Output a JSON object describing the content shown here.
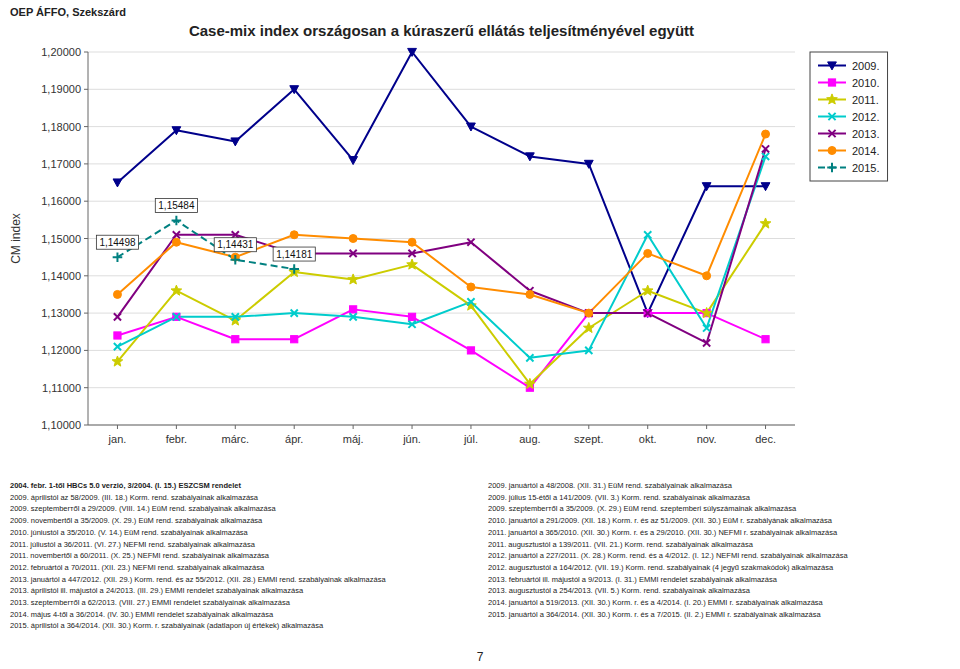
{
  "chart_data": {
    "type": "line",
    "title": "Case-mix index országosan a kúraszerű ellátás teljesítményével együtt",
    "header": "OEP ÁFFO, Szekszárd",
    "y_label": "CM index",
    "categories": [
      "jan.",
      "febr.",
      "márc.",
      "ápr.",
      "máj.",
      "jún.",
      "júl.",
      "aug.",
      "szept.",
      "okt.",
      "nov.",
      "dec."
    ],
    "ylim": [
      1.1,
      1.2
    ],
    "yticks": [
      {
        "value": 1.1,
        "label": "1,10000"
      },
      {
        "value": 1.11,
        "label": "1,11000"
      },
      {
        "value": 1.12,
        "label": "1,12000"
      },
      {
        "value": 1.13,
        "label": "1,13000"
      },
      {
        "value": 1.14,
        "label": "1,14000"
      },
      {
        "value": 1.15,
        "label": "1,15000"
      },
      {
        "value": 1.16,
        "label": "1,16000"
      },
      {
        "value": 1.17,
        "label": "1,17000"
      },
      {
        "value": 1.18,
        "label": "1,18000"
      },
      {
        "value": 1.19,
        "label": "1,19000"
      },
      {
        "value": 1.2,
        "label": "1,20000"
      }
    ],
    "grid": true,
    "legend": "upper right",
    "series": [
      {
        "name": "2009.",
        "color": "#00008B",
        "line_style": "solid",
        "marker": "triangle-down",
        "values": [
          1.165,
          1.179,
          1.176,
          1.19,
          1.171,
          1.2,
          1.18,
          1.172,
          1.17,
          1.13,
          1.164,
          1.164
        ]
      },
      {
        "name": "2010.",
        "color": "#FF00FF",
        "line_style": "solid",
        "marker": "square",
        "values": [
          1.124,
          1.129,
          1.123,
          1.123,
          1.131,
          1.129,
          1.12,
          1.11,
          1.13,
          1.13,
          1.13,
          1.123
        ]
      },
      {
        "name": "2011.",
        "color": "#CCCC00",
        "line_style": "solid",
        "marker": "star",
        "values": [
          1.117,
          1.136,
          1.128,
          1.141,
          1.139,
          1.143,
          1.132,
          1.111,
          1.126,
          1.136,
          1.13,
          1.154
        ]
      },
      {
        "name": "2012.",
        "color": "#00CCCC",
        "line_style": "solid",
        "marker": "x",
        "values": [
          1.121,
          1.129,
          1.129,
          1.13,
          1.129,
          1.127,
          1.133,
          1.118,
          1.12,
          1.151,
          1.126,
          1.172
        ]
      },
      {
        "name": "2013.",
        "color": "#800080",
        "line_style": "solid",
        "marker": "x",
        "values": [
          1.129,
          1.151,
          1.151,
          1.146,
          1.146,
          1.146,
          1.149,
          1.136,
          1.13,
          1.13,
          1.122,
          1.174
        ]
      },
      {
        "name": "2014.",
        "color": "#FF8C00",
        "line_style": "solid",
        "marker": "circle",
        "values": [
          1.135,
          1.149,
          1.145,
          1.151,
          1.15,
          1.149,
          1.137,
          1.135,
          1.13,
          1.146,
          1.14,
          1.178
        ]
      },
      {
        "name": "2015.",
        "color": "#008080",
        "line_style": "dashed",
        "marker": "plus",
        "values": [
          1.14498,
          1.15484,
          1.14431,
          1.14181,
          null,
          null,
          null,
          null,
          null,
          null,
          null,
          null
        ]
      }
    ],
    "annotations": [
      {
        "text": "1,15484",
        "x": "febr.",
        "y": 1.15484
      },
      {
        "text": "1,14498",
        "x": "jan.",
        "y": 1.14498
      },
      {
        "text": "1,14431",
        "x": "márc.",
        "y": 1.14431
      },
      {
        "text": "1,14181",
        "x": "ápr.",
        "y": 1.14181
      }
    ],
    "footnotes_left": [
      "2004. febr. 1-től HBCs 5.0 verzió, 3/2004. (I. 15.) ESZCSM rendelet",
      "2009. áprilistól az 58/2009. (III. 18.) Korm. rend. szabályainak alkalmazása",
      "2009. szeptemberтől a 29/2009. (VIII. 14.) EüM rend. szabályainak alkalmazása",
      "2009. novembertől a 35/2009. (X. 29.) EüM rend. szabályainak alkalmazása",
      "2010. júniustól a 35/2010. (V. 14.) EüM rend. szabályainak alkalmazása",
      "2011. júliustól a 36/2011. (VI. 27.) NEFMI rend. szabályainak alkalmazása",
      "2011. novembertől a 60/2011. (X. 25.) NEFMI rend. szabályainak alkalmazása",
      "2012. februártól a 70/2011. (XII. 23.) NEFMI rend. szabályainak alkalmazása",
      "2013. januártól a 447/2012. (XII. 29.) Korm. rend. és az 55/2012. (XII. 28.) EMMI rend. szabályainak alkalmazása",
      "2013. áprilistól ill. májustól a 24/2013. (III. 29.) EMMI rendelet szabályainak alkalmazása",
      "2013. szeptemberтől a 62/2013. (VIII. 27.) EMMI rendelet szabályainak alkalmazása",
      "2014. május 4-től a 36/2014. (IV. 30.) EMMI rendelet szabályainak alkalmazása",
      "2015. áprilistól a 364/2014. (XII. 30.) Korm. r. szabályainak (adatlapon új értékek) alkalmazása"
    ],
    "footnotes_right": [
      "2009. januártól a 48/2008. (XII. 31.) EüM rend. szabályainak alkalmazása",
      "2009. július 15-étől a 141/2009. (VII. 3.) Korm. rend. szabályainak alkalmazása",
      "2009. szeptemberтől a 35/2009. (X. 29.) EüM rend. szeptemberi súlyszámainak alkalmazása",
      "2010. januártól a 291/2009. (XII. 18.) Korm. r. és az 51/2009. (XII. 30.) EüM r. szabályának alkalmazása",
      "2011. januártól a 365/2010. (XII. 30.) Korm. r. és a 29/2010. (XII. 30.) NEFMI r. szabályainak alkalmazása",
      "2011. augusztustól a 139/2011. (VII. 21.) Korm. rend. szabályainak alkalmazása",
      "2012. januártól a 227/2011. (X. 28.) Korm. rend. és a 4/2012. (I. 12.) NEFMI rend. szabályainak alkalmazása",
      "2012. augusztustól a 164/2012. (VII. 19.) Korm. rend. szabályainak (4 jegyű szakmakódok) alkalmazása",
      "2013. februártól ill. májustól a 9/2013. (I. 31.) EMMI rendelet szabályainak alkalmazása",
      "2013. augusztustól a 254/2013. (VII. 5.) Korm. rend. szabályainak alkalmazása",
      "2014. januártól a 519/2013. (XII. 30.) Korm. r. és a 4/2014. (I. 20.) EMMI r. szabályainak alkalmazása",
      "2015. januártól a 364/2014. (XII. 30.) Korm. r. és a 7/2015. (II. 2.) EMMI r. szabályainak alkalmazása"
    ],
    "page_number": "7"
  }
}
